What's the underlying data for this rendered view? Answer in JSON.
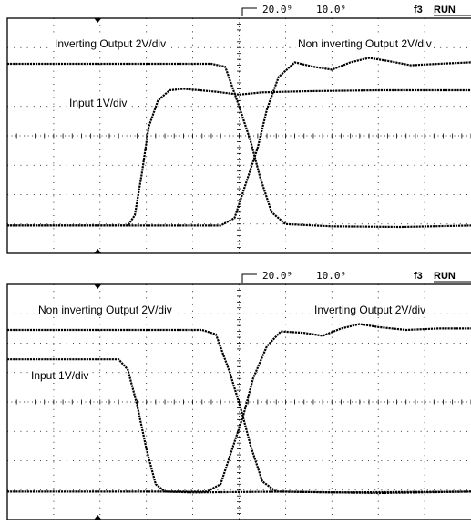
{
  "chart_data": [
    {
      "type": "line",
      "header": {
        "timebase": "20.0⁹",
        "delay": "10.0⁹",
        "status": "RUN",
        "channel": "f3"
      },
      "grid": {
        "divisions_x": 10,
        "divisions_y": 8
      },
      "annotations": [
        {
          "text": "Inverting Output  2V/div",
          "ref": "inv"
        },
        {
          "text": "Non inverting Output  2V/div",
          "ref": "noninv"
        },
        {
          "text": "Input  1V/div",
          "ref": "input"
        }
      ],
      "series": [
        {
          "name": "Inverting Output  2V/div",
          "points": [
            [
              0,
              6.45
            ],
            [
              4.4,
              6.45
            ],
            [
              4.7,
              6.35
            ],
            [
              5.0,
              5.0
            ],
            [
              5.25,
              3.8
            ],
            [
              5.45,
              2.6
            ],
            [
              5.7,
              1.4
            ],
            [
              6.0,
              1.0
            ],
            [
              7.0,
              0.92
            ],
            [
              8.5,
              0.9
            ],
            [
              10,
              0.95
            ]
          ]
        },
        {
          "name": "Non inverting Output  2V/div",
          "points": [
            [
              0,
              0.95
            ],
            [
              4.6,
              0.95
            ],
            [
              4.9,
              1.2
            ],
            [
              5.15,
              2.4
            ],
            [
              5.4,
              3.6
            ],
            [
              5.6,
              4.9
            ],
            [
              5.85,
              6.0
            ],
            [
              6.2,
              6.5
            ],
            [
              6.6,
              6.35
            ],
            [
              7.0,
              6.25
            ],
            [
              7.4,
              6.5
            ],
            [
              7.8,
              6.65
            ],
            [
              8.2,
              6.55
            ],
            [
              8.7,
              6.4
            ],
            [
              9.3,
              6.45
            ],
            [
              10,
              6.5
            ]
          ]
        },
        {
          "name": "Input  1V/div",
          "points": [
            [
              0,
              0.95
            ],
            [
              2.6,
              0.95
            ],
            [
              2.75,
              1.3
            ],
            [
              2.9,
              2.7
            ],
            [
              3.05,
              4.3
            ],
            [
              3.25,
              5.2
            ],
            [
              3.5,
              5.55
            ],
            [
              3.8,
              5.6
            ],
            [
              4.5,
              5.5
            ],
            [
              5.0,
              5.4
            ],
            [
              5.5,
              5.48
            ],
            [
              6.5,
              5.52
            ],
            [
              8,
              5.55
            ],
            [
              10,
              5.55
            ]
          ]
        }
      ]
    },
    {
      "type": "line",
      "header": {
        "timebase": "20.0⁹",
        "delay": "10.0⁹",
        "status": "RUN",
        "channel": "f3"
      },
      "grid": {
        "divisions_x": 10,
        "divisions_y": 8
      },
      "annotations": [
        {
          "text": "Non inverting Output  2V/div",
          "ref": "noninv"
        },
        {
          "text": "Inverting Output  2V/div",
          "ref": "inv"
        },
        {
          "text": "Input  1V/div",
          "ref": "input"
        }
      ],
      "series": [
        {
          "name": "Non inverting Output  2V/div",
          "points": [
            [
              0,
              6.45
            ],
            [
              4.2,
              6.45
            ],
            [
              4.5,
              6.3
            ],
            [
              4.8,
              5.0
            ],
            [
              5.05,
              3.7
            ],
            [
              5.25,
              2.5
            ],
            [
              5.5,
              1.3
            ],
            [
              5.8,
              0.95
            ],
            [
              7,
              0.92
            ],
            [
              10,
              0.95
            ]
          ]
        },
        {
          "name": "Inverting Output  2V/div",
          "points": [
            [
              0,
              0.95
            ],
            [
              4.3,
              0.95
            ],
            [
              4.6,
              1.2
            ],
            [
              4.85,
              2.4
            ],
            [
              5.1,
              3.6
            ],
            [
              5.3,
              4.8
            ],
            [
              5.6,
              5.9
            ],
            [
              5.9,
              6.4
            ],
            [
              6.4,
              6.35
            ],
            [
              6.8,
              6.25
            ],
            [
              7.2,
              6.5
            ],
            [
              7.6,
              6.65
            ],
            [
              8.0,
              6.55
            ],
            [
              8.6,
              6.45
            ],
            [
              9.3,
              6.5
            ],
            [
              10,
              6.5
            ]
          ]
        },
        {
          "name": "Input  1V/div",
          "points": [
            [
              0,
              5.45
            ],
            [
              2.4,
              5.45
            ],
            [
              2.6,
              5.1
            ],
            [
              2.8,
              3.9
            ],
            [
              3.0,
              2.4
            ],
            [
              3.2,
              1.2
            ],
            [
              3.4,
              0.95
            ],
            [
              4,
              0.92
            ],
            [
              6,
              0.95
            ],
            [
              8,
              0.9
            ],
            [
              10,
              0.95
            ]
          ]
        }
      ]
    }
  ]
}
